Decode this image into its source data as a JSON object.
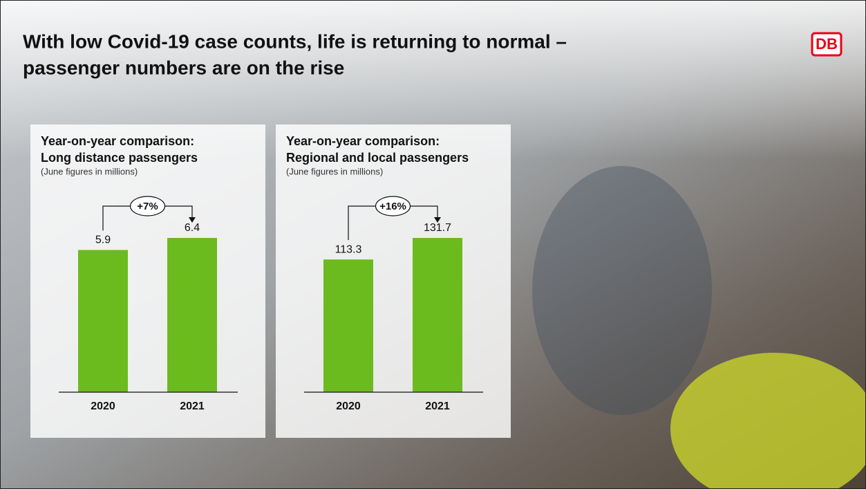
{
  "title": [
    "With low Covid-19 case counts, life is returning to normal –",
    "passenger numbers are on the rise"
  ],
  "logo": "DB",
  "chart_data": [
    {
      "type": "bar",
      "title": [
        "Year-on-year comparison:",
        "Long distance passengers"
      ],
      "note": "(June figures in millions)",
      "annotation": "+7%",
      "categories": [
        "2020",
        "2021"
      ],
      "values": [
        5.9,
        6.4
      ],
      "color": "#6cbb1e"
    },
    {
      "type": "bar",
      "title": [
        "Year-on-year comparison:",
        "Regional and local passengers"
      ],
      "note": "(June figures in millions)",
      "annotation": "+16%",
      "categories": [
        "2020",
        "2021"
      ],
      "values": [
        113.3,
        131.7
      ],
      "color": "#6cbb1e"
    }
  ]
}
